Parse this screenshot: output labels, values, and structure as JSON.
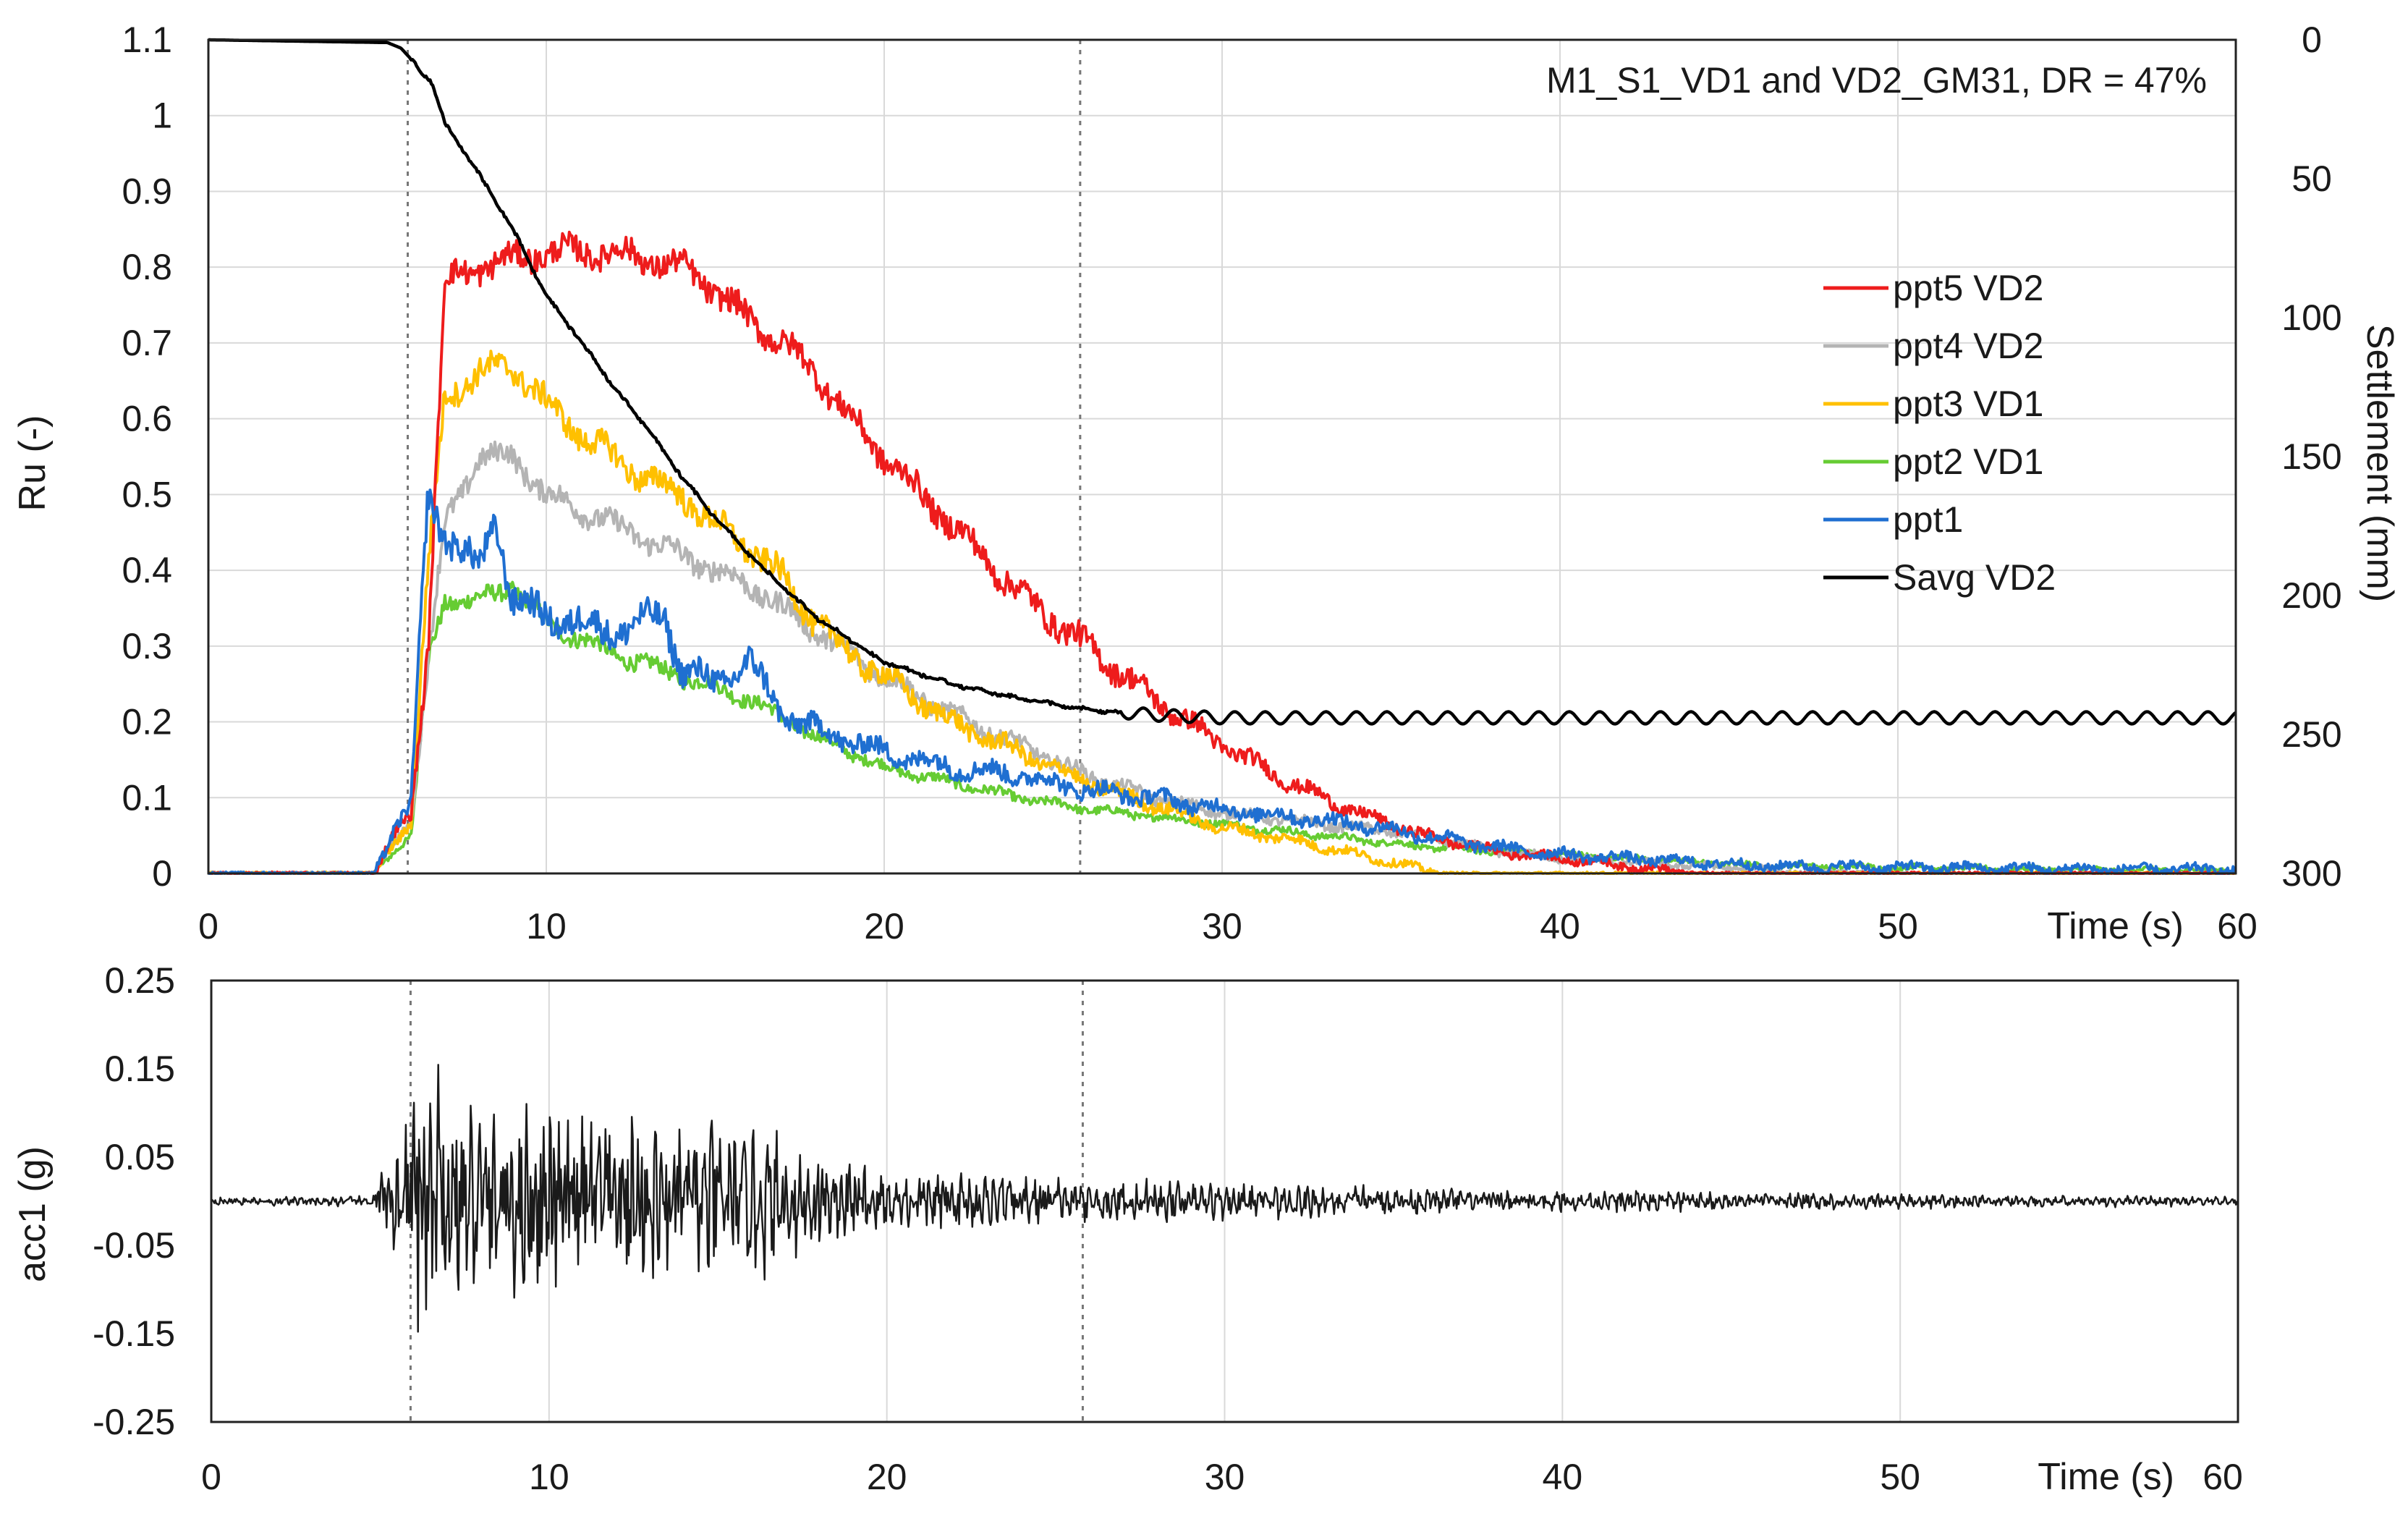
{
  "chart_data": [
    {
      "type": "line",
      "title": "M1_S1_VD1 and VD2_GM31, DR = 47%",
      "xlabel": "Time (s)",
      "ylabel": "Ru (-)",
      "y2label": "Settlement (mm)",
      "xlim": [
        0,
        60
      ],
      "ylim": [
        0,
        1.1
      ],
      "y2lim": [
        300,
        0
      ],
      "grid": true,
      "legend": "right",
      "x_ticks": [
        "0",
        "10",
        "20",
        "30",
        "40",
        "50"
      ],
      "x_end_tick": "60",
      "y_ticks": [
        "0",
        "0.1",
        "0.2",
        "0.3",
        "0.4",
        "0.5",
        "0.6",
        "0.7",
        "0.8",
        "0.9",
        "1",
        "1.1"
      ],
      "y2_ticks": [
        "300",
        "250",
        "200",
        "150",
        "100",
        "50",
        "0"
      ],
      "vlines": [
        5.9,
        25.8
      ],
      "series": [
        {
          "name": "ppt5 VD2",
          "color": "#ee1c1c",
          "axis": "left",
          "noise": 0.012,
          "x": [
            0,
            4.9,
            5.5,
            6.0,
            6.5,
            7.0,
            8.0,
            9.0,
            10.0,
            11.0,
            12.0,
            13.0,
            14.0,
            15.0,
            16.0,
            17.0,
            18.0,
            19.0,
            20.0,
            22.0,
            24.0,
            26.0,
            28.0,
            30.0,
            32.0,
            34.0,
            36.0,
            38.0,
            40.0,
            42.0,
            44.0,
            46.0,
            50.0,
            55.0,
            60.0
          ],
          "y": [
            0.0,
            0.0,
            0.05,
            0.08,
            0.3,
            0.78,
            0.8,
            0.81,
            0.82,
            0.82,
            0.82,
            0.81,
            0.8,
            0.77,
            0.73,
            0.7,
            0.66,
            0.6,
            0.55,
            0.46,
            0.37,
            0.3,
            0.23,
            0.17,
            0.12,
            0.08,
            0.05,
            0.03,
            0.02,
            0.01,
            0.0,
            0.0,
            0.0,
            0.0,
            0.0
          ]
        },
        {
          "name": "ppt4 VD2",
          "color": "#b4b4b4",
          "axis": "left",
          "noise": 0.01,
          "x": [
            0,
            4.9,
            5.5,
            6.0,
            6.5,
            7.0,
            8.0,
            9.0,
            10.0,
            12.0,
            14.0,
            16.0,
            18.0,
            20.0,
            22.0,
            24.0,
            26.0,
            28.0,
            30.0,
            32.0,
            34.0,
            36.0,
            38.0,
            40.0,
            42.0,
            44.0,
            46.0,
            50.0,
            55.0,
            60.0
          ],
          "y": [
            0.0,
            0.0,
            0.04,
            0.07,
            0.28,
            0.46,
            0.55,
            0.55,
            0.5,
            0.46,
            0.42,
            0.38,
            0.32,
            0.26,
            0.21,
            0.17,
            0.13,
            0.1,
            0.08,
            0.07,
            0.06,
            0.05,
            0.03,
            0.02,
            0.015,
            0.01,
            0.005,
            0.0,
            0.0,
            0.0
          ]
        },
        {
          "name": "ppt3 VD1",
          "color": "#ffc000",
          "axis": "left",
          "noise": 0.012,
          "x": [
            0,
            4.9,
            5.5,
            6.0,
            6.5,
            7.0,
            8.0,
            9.0,
            10.0,
            11.0,
            12.0,
            13.0,
            14.0,
            15.0,
            16.0,
            17.0,
            18.0,
            19.0,
            20.0,
            22.0,
            24.0,
            26.0,
            28.0,
            30.0,
            32.0,
            34.0,
            35.5,
            36.5,
            40.0,
            45.0,
            50.0,
            55.0,
            60.0
          ],
          "y": [
            0.0,
            0.0,
            0.04,
            0.07,
            0.4,
            0.63,
            0.66,
            0.67,
            0.62,
            0.58,
            0.55,
            0.52,
            0.5,
            0.46,
            0.43,
            0.39,
            0.33,
            0.29,
            0.26,
            0.2,
            0.16,
            0.12,
            0.09,
            0.06,
            0.045,
            0.025,
            0.01,
            0.0,
            0.0,
            0.0,
            0.0,
            0.0,
            0.0
          ]
        },
        {
          "name": "ppt2 VD1",
          "color": "#66cc33",
          "axis": "left",
          "noise": 0.008,
          "x": [
            0,
            4.9,
            5.5,
            6.0,
            6.5,
            7.0,
            8.0,
            9.0,
            10.0,
            12.0,
            14.0,
            16.0,
            18.0,
            20.0,
            22.0,
            24.0,
            26.0,
            28.0,
            30.0,
            32.0,
            34.0,
            36.0,
            38.0,
            40.0,
            42.0,
            44.0,
            46.0,
            50.0,
            55.0,
            60.0
          ],
          "y": [
            0.0,
            0.0,
            0.03,
            0.05,
            0.28,
            0.36,
            0.36,
            0.38,
            0.33,
            0.29,
            0.26,
            0.23,
            0.18,
            0.14,
            0.12,
            0.1,
            0.085,
            0.075,
            0.065,
            0.055,
            0.045,
            0.035,
            0.03,
            0.025,
            0.02,
            0.015,
            0.01,
            0.008,
            0.005,
            0.004
          ]
        },
        {
          "name": "ppt1",
          "color": "#1f6fd1",
          "axis": "left",
          "noise": 0.014,
          "x": [
            0,
            4.9,
            5.5,
            6.0,
            6.5,
            7.0,
            8.0,
            8.5,
            9.0,
            10.0,
            12.0,
            13.5,
            14.0,
            15.0,
            16.0,
            17.0,
            18.0,
            20.0,
            22.0,
            24.0,
            26.0,
            28.0,
            30.0,
            32.0,
            34.0,
            36.0,
            38.0,
            40.0,
            42.0,
            44.0,
            46.0,
            50.0,
            55.0,
            60.0
          ],
          "y": [
            0.0,
            0.0,
            0.06,
            0.09,
            0.5,
            0.45,
            0.4,
            0.47,
            0.36,
            0.34,
            0.32,
            0.34,
            0.27,
            0.25,
            0.28,
            0.21,
            0.19,
            0.16,
            0.14,
            0.13,
            0.11,
            0.1,
            0.085,
            0.075,
            0.065,
            0.05,
            0.035,
            0.025,
            0.02,
            0.015,
            0.01,
            0.008,
            0.006,
            0.005
          ]
        },
        {
          "name": "Savg VD2",
          "color": "#000000",
          "axis": "right",
          "noise": 0.0,
          "x": [
            0,
            5.3,
            5.7,
            6.0,
            6.3,
            6.6,
            7.0,
            8.0,
            9.0,
            10.0,
            11.0,
            12.0,
            13.0,
            14.0,
            15.0,
            16.0,
            17.0,
            18.0,
            19.0,
            20.0,
            22.0,
            24.0,
            26.0,
            28.0,
            30.0,
            35.0,
            40.0,
            45.0,
            50.0,
            55.0,
            60.0
          ],
          "y": [
            0,
            1,
            3,
            7,
            12,
            15,
            30,
            48,
            68,
            92,
            108,
            125,
            140,
            157,
            172,
            185,
            197,
            208,
            216,
            224,
            232,
            237,
            241,
            243,
            244,
            244,
            244,
            244,
            244,
            244,
            244
          ]
        }
      ]
    },
    {
      "type": "line",
      "title": "",
      "xlabel": "Time (s)",
      "ylabel": "acc1 (g)",
      "xlim": [
        0,
        60
      ],
      "ylim": [
        -0.25,
        0.25
      ],
      "grid": true,
      "x_ticks": [
        "0",
        "10",
        "20",
        "30",
        "40",
        "50"
      ],
      "x_end_tick": "60",
      "y_ticks": [
        "0.25",
        "0.15",
        "0.05",
        "-0.05",
        "-0.15",
        "-0.25"
      ],
      "vlines": [
        5.9,
        25.8
      ],
      "series": [
        {
          "name": "acc1",
          "color": "#1a1a1a",
          "envelope": {
            "t": [
              0,
              4.8,
              5.0,
              5.5,
              5.9,
              6.2,
              6.5,
              7.5,
              9.0,
              11.0,
              13.0,
              15.0,
              17.0,
              18.5,
              20.0,
              23.0,
              26.0,
              30.0,
              35.0,
              40.0,
              45.0,
              50.0,
              55.0,
              60.0
            ],
            "amp": [
              0.004,
              0.006,
              0.04,
              0.06,
              0.12,
              0.17,
              0.14,
              0.11,
              0.1,
              0.1,
              0.1,
              0.09,
              0.07,
              0.05,
              0.035,
              0.03,
              0.025,
              0.02,
              0.015,
              0.012,
              0.01,
              0.008,
              0.006,
              0.005
            ]
          }
        }
      ]
    }
  ]
}
